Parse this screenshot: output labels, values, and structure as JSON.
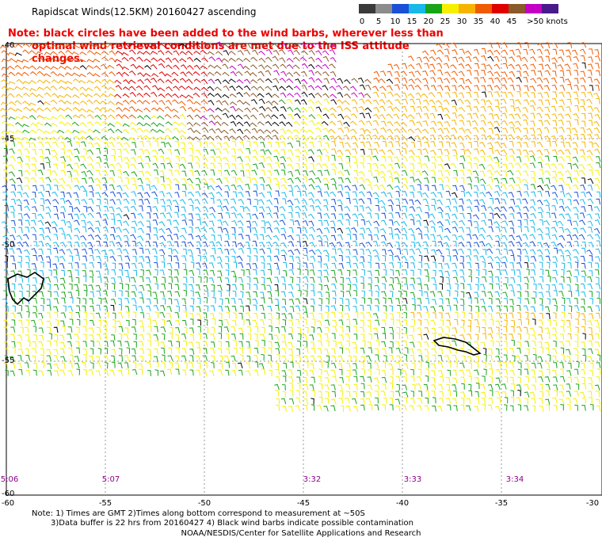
{
  "header": {
    "title": "Rapidscat Winds(12.5KM) 20160427 ascending",
    "note_line1": "Note: black circles have been added to the wind barbs, wherever less than",
    "note_line2": "optimal wind retrieval conditions are met due to the ISS attitude changes."
  },
  "color_scale": {
    "labels": [
      "0",
      "5",
      "10",
      "15",
      "20",
      "25",
      "30",
      "35",
      "40",
      "45",
      ">50 knots"
    ],
    "colors": [
      "#3a3a3a",
      "#8c8c8c",
      "#1a4fd6",
      "#18b8e8",
      "#18a418",
      "#f6f000",
      "#f6b400",
      "#f05a00",
      "#e00000",
      "#8a5a2a",
      "#c400c4",
      "#4a1a8a"
    ]
  },
  "map": {
    "lat_labels": [
      "-40",
      "-45",
      "-50",
      "-55",
      "-60"
    ],
    "lon_labels": [
      "-60",
      "-55",
      "-50",
      "-45",
      "-40",
      "-35",
      "-30"
    ],
    "time_labels": [
      "5:06",
      "5:07",
      "3:32",
      "3:33",
      "3:34"
    ]
  },
  "footer": {
    "line1": "Note: 1) Times are GMT 2)Times along bottom correspond to measurement at ~50S",
    "line2": "3)Data buffer is 22 hrs from 20160427 4) Black wind barbs indicate possible contamination",
    "credit": "NOAA/NESDIS/Center for Satellite Applications and Research"
  }
}
